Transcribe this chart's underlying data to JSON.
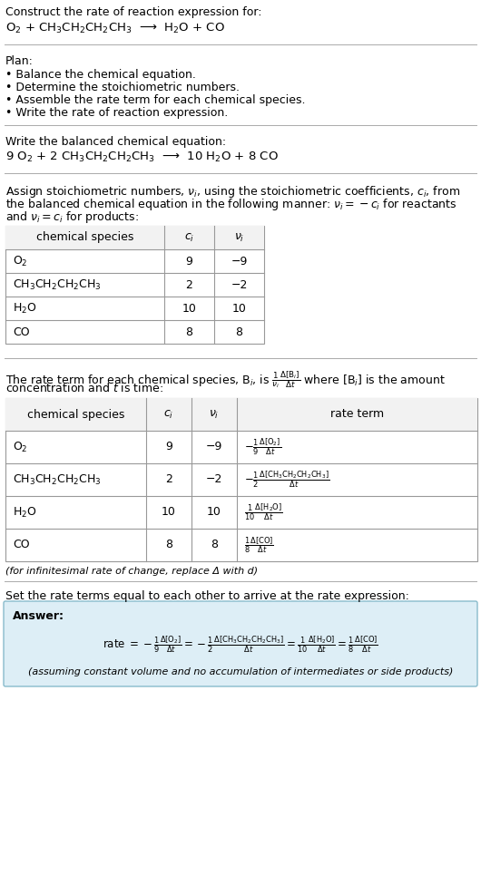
{
  "bg_color": "#ffffff",
  "text_color": "#000000",
  "line_color": "#aaaaaa",
  "answer_box_color": "#ddeef6",
  "answer_box_edge": "#88bbcc",
  "title_text": "Construct the rate of reaction expression for:",
  "reaction_unbalanced": "O$_2$ + CH$_3$CH$_2$CH$_2$CH$_3$  ⟶  H$_2$O + CO",
  "plan_header": "Plan:",
  "plan_items": [
    "• Balance the chemical equation.",
    "• Determine the stoichiometric numbers.",
    "• Assemble the rate term for each chemical species.",
    "• Write the rate of reaction expression."
  ],
  "balanced_header": "Write the balanced chemical equation:",
  "reaction_balanced": "9 O$_2$ + 2 CH$_3$CH$_2$CH$_2$CH$_3$  ⟶  10 H$_2$O + 8 CO",
  "stoich_intro_lines": [
    "Assign stoichiometric numbers, $\\nu_i$, using the stoichiometric coefficients, $c_i$, from",
    "the balanced chemical equation in the following manner: $\\nu_i = -c_i$ for reactants",
    "and $\\nu_i = c_i$ for products:"
  ],
  "table1_headers": [
    "chemical species",
    "$c_i$",
    "$\\nu_i$"
  ],
  "table1_rows": [
    [
      "O$_2$",
      "9",
      "−9"
    ],
    [
      "CH$_3$CH$_2$CH$_2$CH$_3$",
      "2",
      "−2"
    ],
    [
      "H$_2$O",
      "10",
      "10"
    ],
    [
      "CO",
      "8",
      "8"
    ]
  ],
  "rate_intro_lines": [
    "The rate term for each chemical species, B$_i$, is $\\frac{1}{\\nu_i}\\frac{\\Delta[\\mathrm{B}_i]}{\\Delta t}$ where [B$_i$] is the amount",
    "concentration and $t$ is time:"
  ],
  "table2_headers": [
    "chemical species",
    "$c_i$",
    "$\\nu_i$",
    "rate term"
  ],
  "table2_rows": [
    [
      "O$_2$",
      "9",
      "−9",
      "$-\\frac{1}{9}\\frac{\\Delta[\\mathrm{O_2}]}{\\Delta t}$"
    ],
    [
      "CH$_3$CH$_2$CH$_2$CH$_3$",
      "2",
      "−2",
      "$-\\frac{1}{2}\\frac{\\Delta[\\mathrm{CH_3CH_2CH_2CH_3}]}{\\Delta t}$"
    ],
    [
      "H$_2$O",
      "10",
      "10",
      "$\\frac{1}{10}\\frac{\\Delta[\\mathrm{H_2O}]}{\\Delta t}$"
    ],
    [
      "CO",
      "8",
      "8",
      "$\\frac{1}{8}\\frac{\\Delta[\\mathrm{CO}]}{\\Delta t}$"
    ]
  ],
  "infinitesimal_note": "(for infinitesimal rate of change, replace Δ with d)",
  "set_equal_text": "Set the rate terms equal to each other to arrive at the rate expression:",
  "answer_label": "Answer:",
  "rate_expression": "rate $= -\\frac{1}{9}\\frac{\\Delta[\\mathrm{O_2}]}{\\Delta t} = -\\frac{1}{2}\\frac{\\Delta[\\mathrm{CH_3CH_2CH_2CH_3}]}{\\Delta t} = \\frac{1}{10}\\frac{\\Delta[\\mathrm{H_2O}]}{\\Delta t} = \\frac{1}{8}\\frac{\\Delta[\\mathrm{CO}]}{\\Delta t}$",
  "assumption_note": "(assuming constant volume and no accumulation of intermediates or side products)",
  "font_size": 9.0,
  "font_size_small": 8.0,
  "font_size_reaction": 9.5
}
